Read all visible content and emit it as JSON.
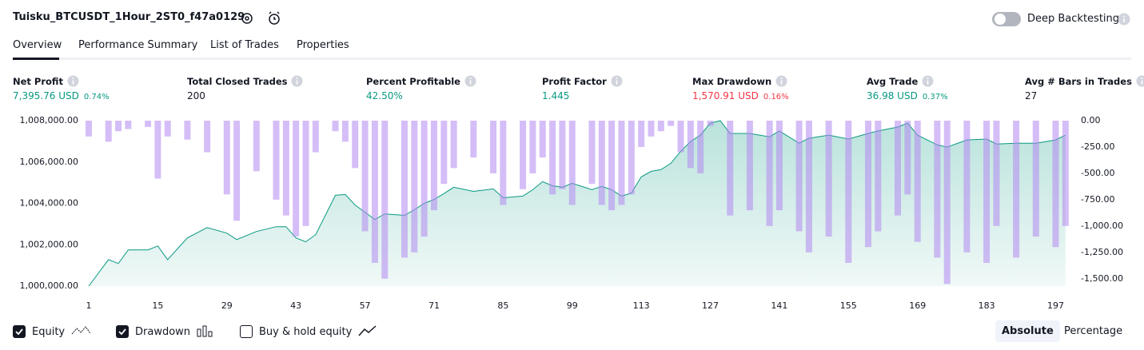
{
  "header": {
    "title": "Tuisku_BTCUSDT_1Hour_2ST0_f47a0129",
    "toggle_label": "Deep Backtesting"
  },
  "tabs": [
    "Overview",
    "Performance Summary",
    "List of Trades",
    "Properties"
  ],
  "metrics": [
    {
      "label": "Net Profit",
      "value": "7,395.76 USD",
      "percent": "0.74%",
      "color": "#089981"
    },
    {
      "label": "Total Closed Trades",
      "value": "200",
      "color": "#131722"
    },
    {
      "label": "Percent Profitable",
      "value": "42.50%",
      "color": "#089981"
    },
    {
      "label": "Profit Factor",
      "value": "1.445",
      "color": "#089981"
    },
    {
      "label": "Max Drawdown",
      "value": "1,570.91 USD",
      "percent": "0.16%",
      "color": "#f23645"
    },
    {
      "label": "Avg Trade",
      "value": "36.98 USD",
      "percent": "0.37%",
      "color": "#089981"
    },
    {
      "label": "Avg # Bars in Trades",
      "value": "27",
      "color": "#131722"
    }
  ],
  "chart_data": {
    "type": "line",
    "x": [
      1,
      5,
      7,
      9,
      13,
      15,
      17,
      21,
      25,
      29,
      31,
      35,
      39,
      41,
      43,
      45,
      47,
      51,
      53,
      55,
      57,
      59,
      61,
      65,
      67,
      69,
      71,
      73,
      75,
      79,
      83,
      85,
      89,
      91,
      93,
      95,
      97,
      99,
      103,
      105,
      107,
      109,
      111,
      113,
      115,
      117,
      119,
      121,
      123,
      125,
      127,
      129,
      131,
      135,
      139,
      141,
      145,
      147,
      151,
      155,
      159,
      161,
      165,
      167,
      169,
      173,
      175,
      179,
      183,
      185,
      189,
      193,
      197,
      199
    ],
    "series": [
      {
        "name": "Equity",
        "type": "line",
        "axis": "y",
        "color": "#089981",
        "values": [
          1000000,
          1001280,
          1001090,
          1001750,
          1001750,
          1001940,
          1001280,
          1002330,
          1002830,
          1002560,
          1002250,
          1002640,
          1002870,
          1002870,
          1002330,
          1002140,
          1002490,
          1004390,
          1004430,
          1003920,
          1003570,
          1003220,
          1003490,
          1003420,
          1003690,
          1004000,
          1004190,
          1004470,
          1004780,
          1004580,
          1004700,
          1004270,
          1004350,
          1004660,
          1005050,
          1004850,
          1004780,
          1004970,
          1004660,
          1004820,
          1004660,
          1004350,
          1004500,
          1005280,
          1005550,
          1005630,
          1005940,
          1006520,
          1006990,
          1007300,
          1007880,
          1008000,
          1007380,
          1007380,
          1007220,
          1007500,
          1006910,
          1007150,
          1007300,
          1007110,
          1007380,
          1007500,
          1007690,
          1007880,
          1007300,
          1006830,
          1006720,
          1007070,
          1007110,
          1006870,
          1006910,
          1006910,
          1007070,
          1007300
        ]
      },
      {
        "name": "Drawdown",
        "type": "bar",
        "axis": "y2",
        "color": "#b388f0",
        "values": [
          -150,
          -200,
          -100,
          -80,
          -60,
          -550,
          -150,
          -180,
          -300,
          -700,
          -950,
          -480,
          -750,
          -900,
          -1100,
          -1000,
          -300,
          -100,
          -200,
          -450,
          -1050,
          -1350,
          -1500,
          -1300,
          -1250,
          -1100,
          -850,
          -600,
          -450,
          -350,
          -500,
          -800,
          -650,
          -500,
          -350,
          -700,
          -650,
          -800,
          -600,
          -800,
          -850,
          -800,
          -700,
          -250,
          -150,
          -100,
          -50,
          -300,
          -450,
          -500,
          -50,
          0,
          -900,
          -850,
          -1000,
          -850,
          -1050,
          -1250,
          -1100,
          -1350,
          -1200,
          -1050,
          -900,
          -700,
          -1150,
          -1300,
          -1550,
          -1250,
          -1350,
          -1000,
          -1300,
          -1100,
          -1200,
          -1000
        ]
      }
    ],
    "xlim": [
      1,
      200
    ],
    "xticks": [
      1,
      15,
      29,
      43,
      57,
      71,
      85,
      99,
      113,
      127,
      141,
      155,
      169,
      183,
      197
    ],
    "ylim": [
      1000000,
      1008000
    ],
    "yticks": [
      {
        "value": 1000000,
        "label": "1,000,000.00"
      },
      {
        "value": 1002000,
        "label": "1,002,000.00"
      },
      {
        "value": 1004000,
        "label": "1,004,000.00"
      },
      {
        "value": 1006000,
        "label": "1,006,000.00"
      },
      {
        "value": 1008000,
        "label": "1,008,000.00"
      }
    ],
    "y2lim": [
      -1570,
      0
    ],
    "y2ticks": [
      {
        "value": 0,
        "label": "0.00"
      },
      {
        "value": -250,
        "label": "-250.00"
      },
      {
        "value": -500,
        "label": "-500.00"
      },
      {
        "value": -750,
        "label": "-750.00"
      },
      {
        "value": -1000,
        "label": "-1,000.00"
      },
      {
        "value": -1250,
        "label": "-1,250.00"
      },
      {
        "value": -1500,
        "label": "-1,500.00"
      }
    ]
  },
  "legend": [
    "Equity",
    "Drawdown",
    "Buy & hold equity"
  ],
  "scale_buttons": [
    "Absolute",
    "Percentage"
  ]
}
